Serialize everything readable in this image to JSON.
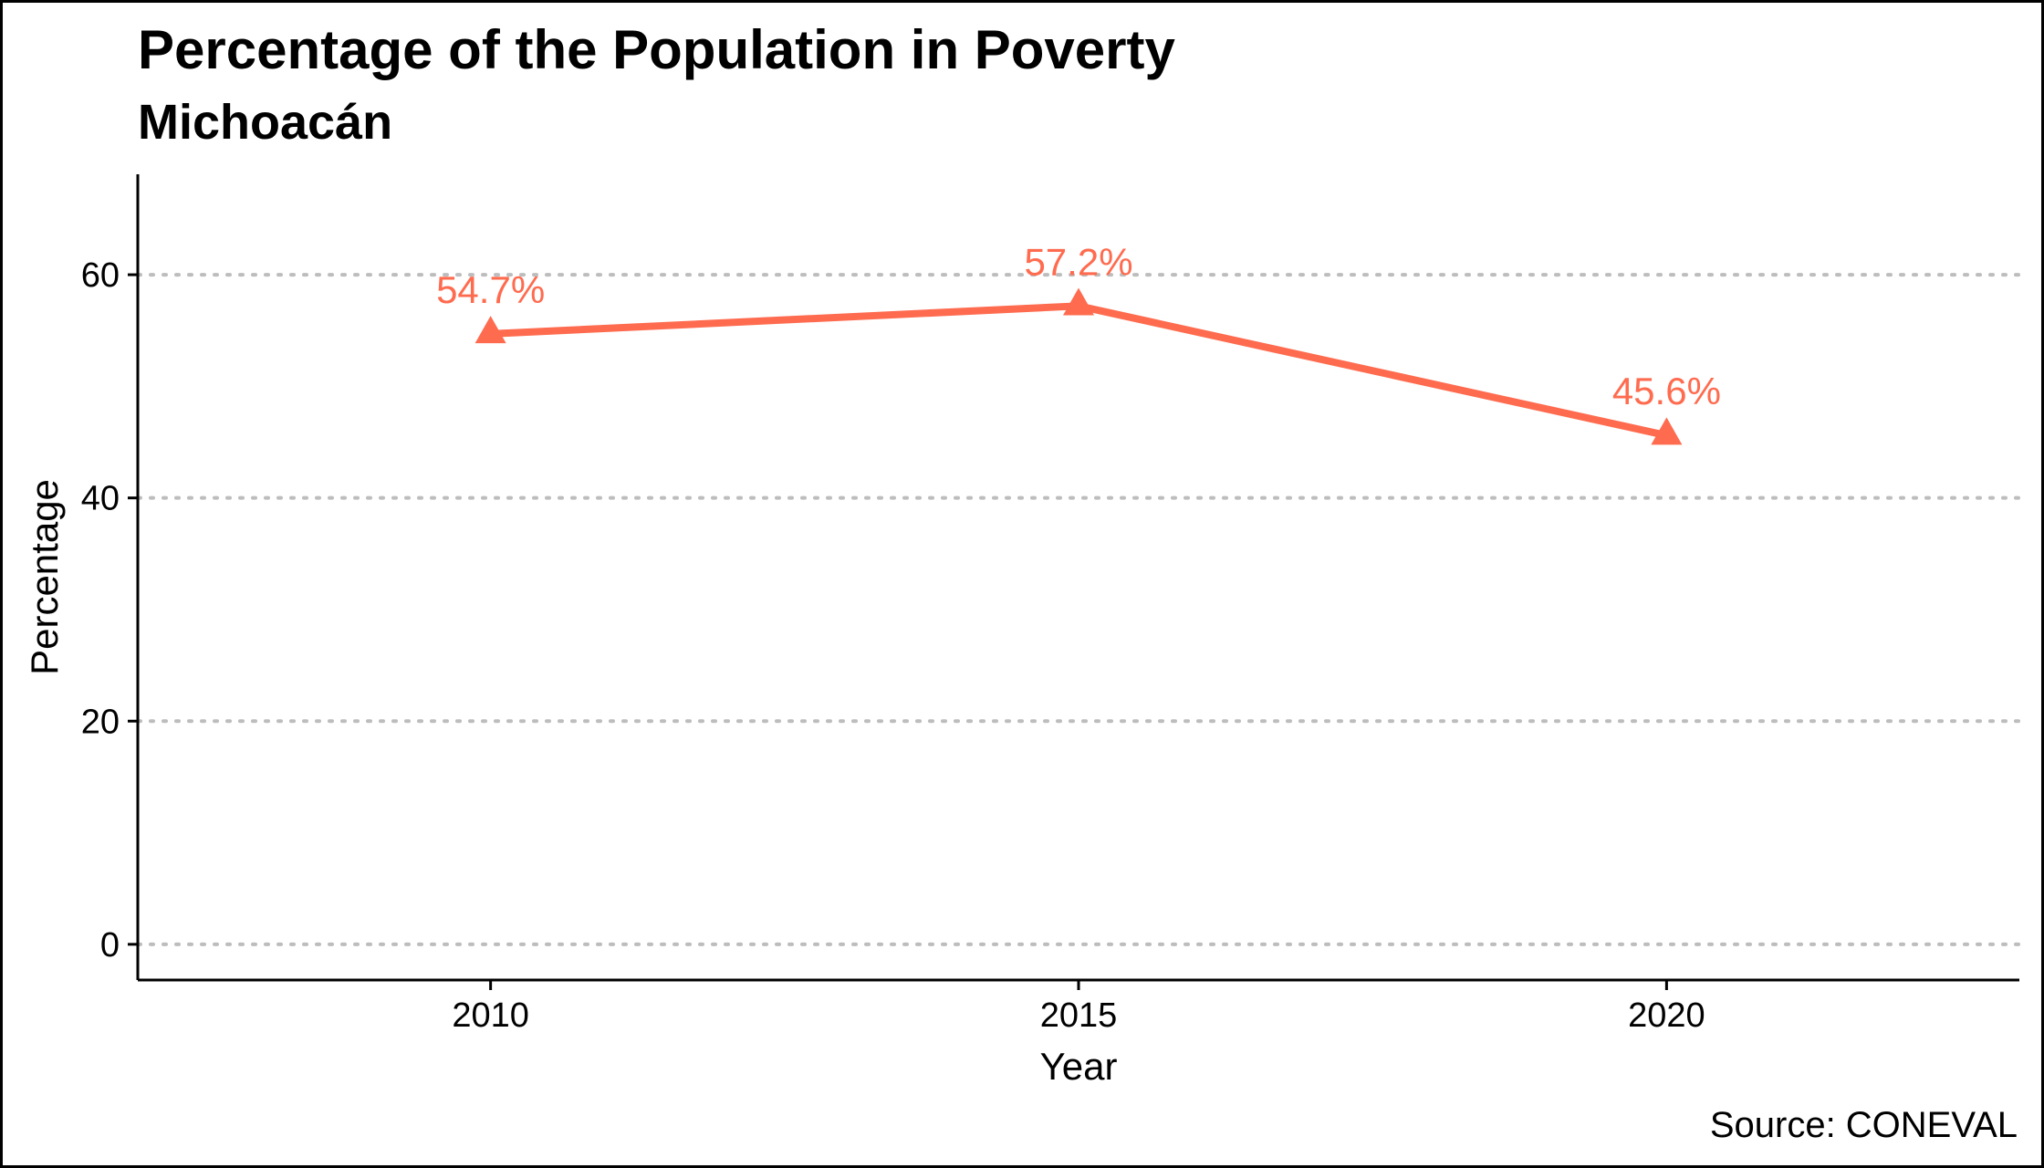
{
  "chart_data": {
    "type": "line",
    "title": "Percentage of the Population in Poverty",
    "subtitle": "Michoacán",
    "xlabel": "Year",
    "ylabel": "Percentage",
    "caption": "Source: CONEVAL",
    "x": [
      2010,
      2015,
      2020
    ],
    "series": [
      {
        "values": [
          54.7,
          57.2,
          45.6
        ],
        "labels": [
          "54.7%",
          "57.2%",
          "45.6%"
        ],
        "color": "#FF6B4F",
        "marker": "triangle"
      }
    ],
    "xticks": [
      2010,
      2015,
      2020
    ],
    "yticks": [
      0,
      20,
      40,
      60
    ],
    "xlim": [
      2007,
      2023
    ],
    "ylim": [
      -3.2,
      69
    ],
    "grid": "horizontal-dotted",
    "legend": "none"
  }
}
